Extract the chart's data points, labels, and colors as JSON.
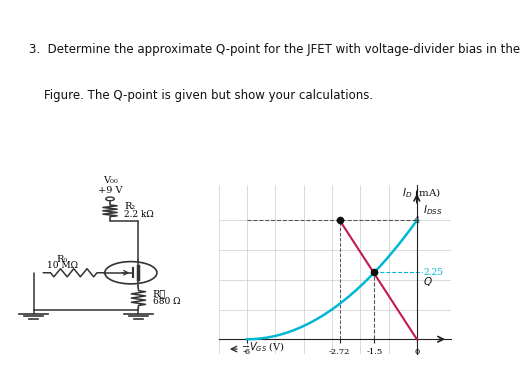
{
  "title_line1": "3.  Determine the approximate Q-point for the JFET with voltage-divider bias in the",
  "title_line2": "    Figure. The Q-point is given but show your calculations.",
  "title_fontsize": 8.5,
  "bg_top": "#ffffff",
  "bg_bottom": "#d8d8d8",
  "graph_bg": "#f5f5f5",
  "graph_inner_bg": "#ffffff",
  "idss": 4.0,
  "vp": -6.0,
  "vgs_q": -1.5,
  "id_q": 2.25,
  "xmin": -7.0,
  "xmax": 1.2,
  "ymin": -0.5,
  "ymax": 5.2,
  "curve_color": "#00b8d4",
  "bias_line_color": "#c2185b",
  "dashed_color": "#555555",
  "dot_color": "#111111",
  "axis_color": "#222222",
  "grid_color": "#cccccc",
  "wire_color": "#333333",
  "resistor_color": "#333333"
}
